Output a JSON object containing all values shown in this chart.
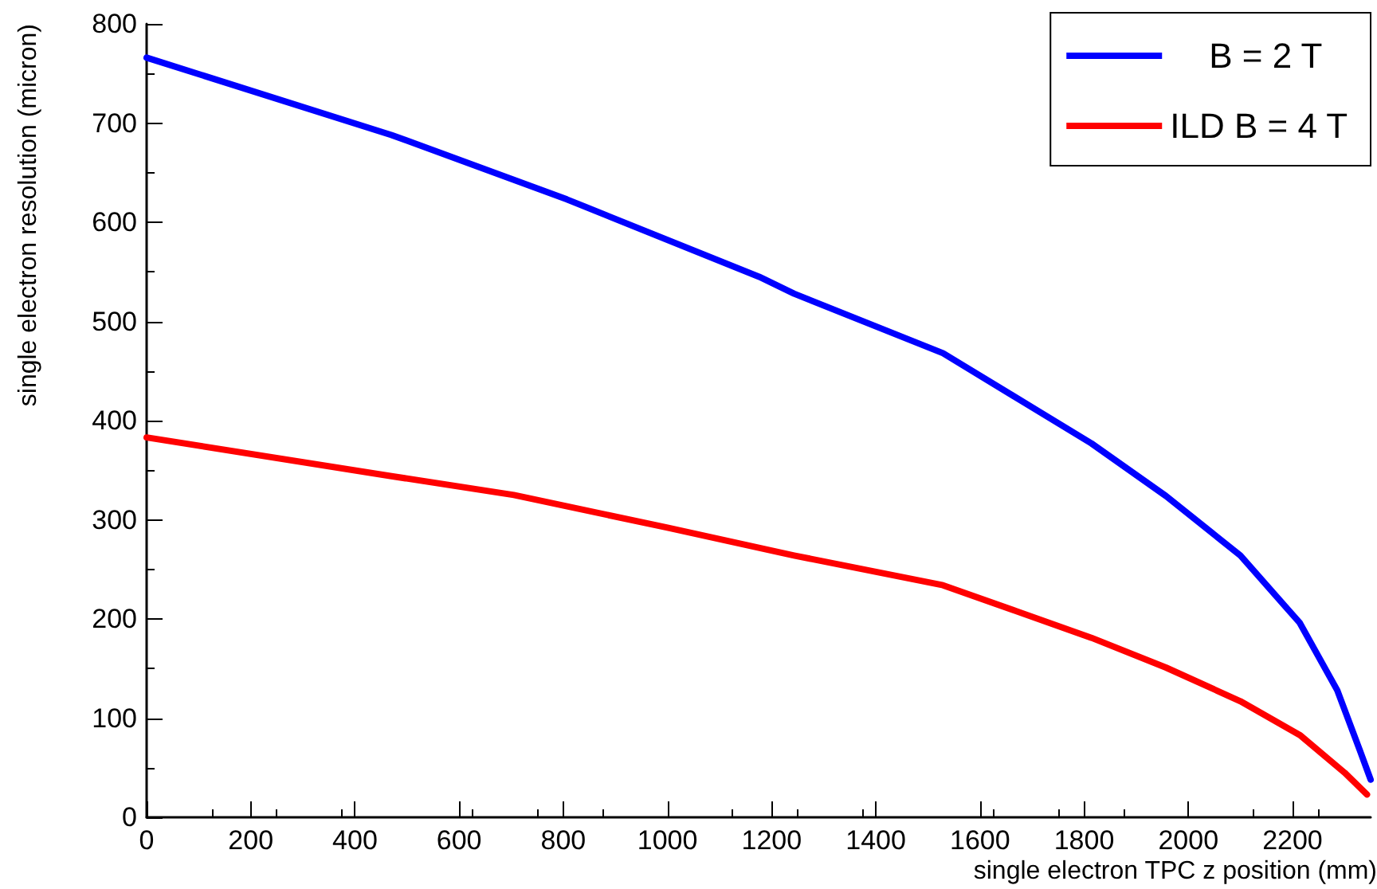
{
  "chart_data": {
    "type": "line",
    "xlabel": "single electron TPC z position (mm)",
    "ylabel": "single electron resolution (micron)",
    "xlim": [
      0,
      2350
    ],
    "xticks": [
      0,
      200,
      400,
      600,
      800,
      1000,
      1200,
      1400,
      1600,
      1800,
      2000,
      2200
    ],
    "ylim": [
      0,
      800
    ],
    "yticks": [
      0,
      100,
      200,
      300,
      400,
      500,
      600,
      700,
      800
    ],
    "grid": false,
    "legend": "top right",
    "marker": "none",
    "line_style": "solid",
    "series": [
      {
        "name": "    B = 2 T",
        "color": "#0000ff",
        "x": [
          0,
          470,
          807,
          1176,
          1243,
          1529,
          1814,
          1957,
          2100,
          2214,
          2286,
          2329,
          2350
        ],
        "values": [
          766,
          688,
          623,
          545,
          528,
          468,
          377,
          324,
          264,
          196,
          128,
          68,
          38
        ]
      },
      {
        "name": "ILD B = 4 T",
        "color": "#ff0000",
        "x": [
          0,
          470,
          705,
          1000,
          1243,
          1529,
          1814,
          1957,
          2100,
          2214,
          2300,
          2343
        ],
        "values": [
          383,
          344,
          325,
          292,
          264,
          234,
          181,
          151,
          117,
          83,
          45,
          23
        ]
      }
    ]
  }
}
